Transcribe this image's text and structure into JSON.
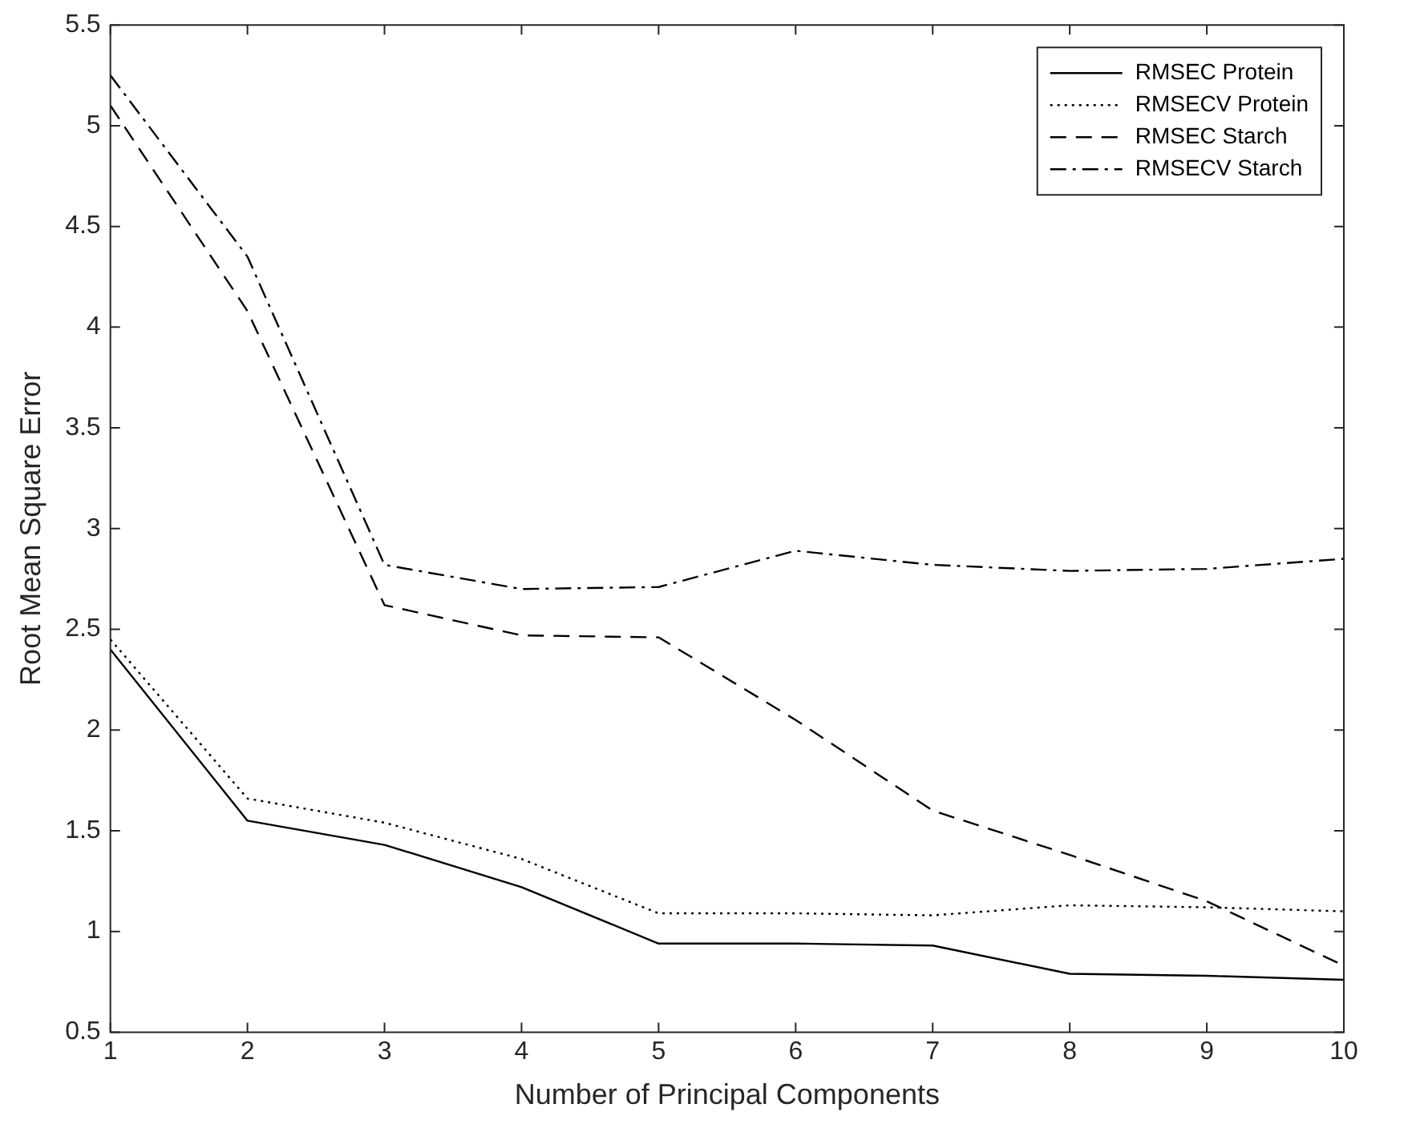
{
  "chart_data": {
    "type": "line",
    "xlabel": "Number of Principal Components",
    "ylabel": "Root Mean Square Error",
    "x": [
      1,
      2,
      3,
      4,
      5,
      6,
      7,
      8,
      9,
      10
    ],
    "xlim": [
      1,
      10
    ],
    "xticks": [
      1,
      2,
      3,
      4,
      5,
      6,
      7,
      8,
      9,
      10
    ],
    "ylim": [
      0.5,
      5.5
    ],
    "yticks": [
      0.5,
      1,
      1.5,
      2,
      2.5,
      3,
      3.5,
      4,
      4.5,
      5,
      5.5
    ],
    "grid": false,
    "legend": "top right",
    "marker": "none",
    "series": [
      {
        "name": "RMSEC Protein",
        "color": "#000000",
        "line_style": "solid",
        "values": [
          2.4,
          1.55,
          1.43,
          1.22,
          0.94,
          0.94,
          0.93,
          0.79,
          0.78,
          0.76
        ]
      },
      {
        "name": "RMSECV Protein",
        "color": "#000000",
        "line_style": "dotted",
        "values": [
          2.45,
          1.66,
          1.54,
          1.36,
          1.09,
          1.09,
          1.08,
          1.13,
          1.12,
          1.1
        ]
      },
      {
        "name": "RMSEC Starch",
        "color": "#000000",
        "line_style": "dashed",
        "values": [
          5.1,
          4.08,
          2.62,
          2.47,
          2.46,
          2.05,
          1.6,
          1.38,
          1.15,
          0.83
        ]
      },
      {
        "name": "RMSECV Starch",
        "color": "#000000",
        "line_style": "dashdot",
        "values": [
          5.25,
          4.35,
          2.82,
          2.7,
          2.71,
          2.89,
          2.82,
          2.79,
          2.8,
          2.85
        ]
      }
    ]
  }
}
